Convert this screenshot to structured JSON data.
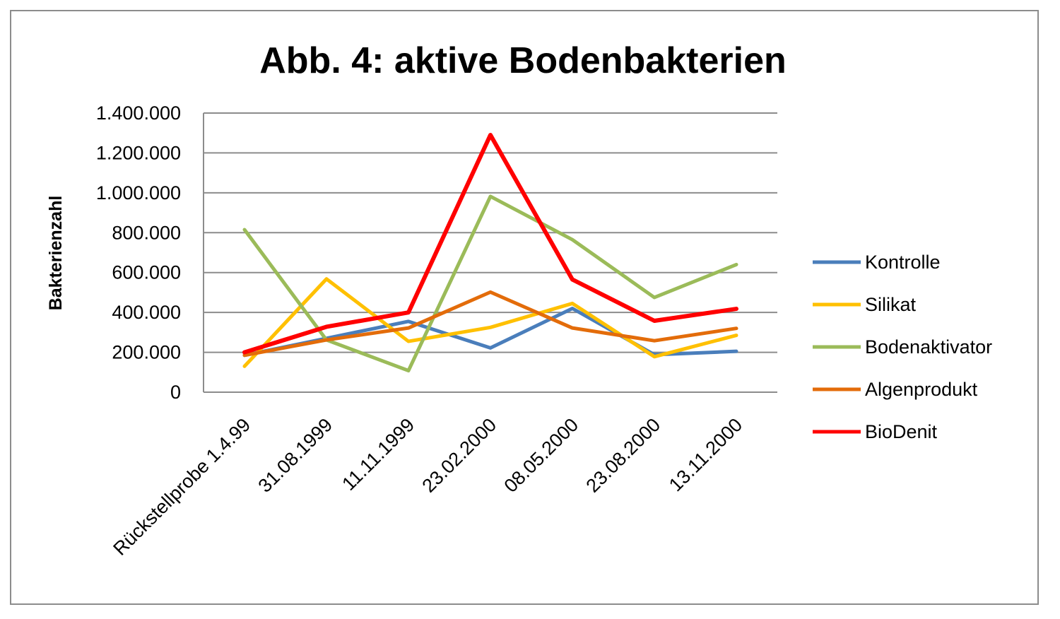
{
  "chart_data": {
    "type": "line",
    "title": "Abb. 4: aktive Bodenbakterien",
    "xlabel": "",
    "ylabel": "Bakterienzahl",
    "categories": [
      "Rückstellprobe 1.4.99",
      "31.08.1999",
      "11.11.1999",
      "23.02.2000",
      "08.05.2000",
      "23.08.2000",
      "13.11.2000"
    ],
    "ylim": [
      0,
      1400000
    ],
    "y_ticks": [
      0,
      200000,
      400000,
      600000,
      800000,
      1000000,
      1200000,
      1400000
    ],
    "y_tick_labels": [
      "0",
      "200.000",
      "400.000",
      "600.000",
      "800.000",
      "1.000.000",
      "1.200.000",
      "1.400.000"
    ],
    "grid": true,
    "legend_position": "right",
    "series": [
      {
        "name": "Kontrolle",
        "color": "#4a7ebb",
        "values": [
          185000,
          270000,
          355000,
          222000,
          420000,
          188000,
          205000
        ]
      },
      {
        "name": "Silikat",
        "color": "#ffc000",
        "values": [
          130000,
          568000,
          255000,
          325000,
          445000,
          178000,
          285000
        ]
      },
      {
        "name": "Bodenaktivator",
        "color": "#9bbb59",
        "values": [
          815000,
          262000,
          108000,
          982000,
          765000,
          475000,
          640000
        ]
      },
      {
        "name": "Algenprodukt",
        "color": "#e36c0a",
        "values": [
          185000,
          262000,
          322000,
          502000,
          322000,
          258000,
          320000
        ]
      },
      {
        "name": "BioDenit",
        "color": "#ff0000",
        "values": [
          200000,
          328000,
          400000,
          1290000,
          565000,
          358000,
          418000
        ]
      }
    ]
  }
}
